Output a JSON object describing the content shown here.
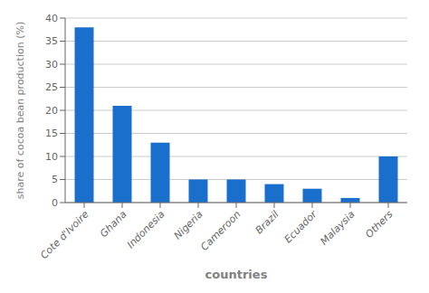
{
  "chart_data": {
    "type": "bar",
    "categories": [
      "Cote d'Ivoire",
      "Ghana",
      "Indonesia",
      "Nigeria",
      "Cameroon",
      "Brazil",
      "Ecuador",
      "Malaysia",
      "Others"
    ],
    "values": [
      38,
      21,
      13,
      5,
      5,
      4,
      3,
      1,
      10
    ],
    "color": "#1a6fcc",
    "xlabel": "countries",
    "ylabel": "share of cocoa bean production (%)",
    "ylim": [
      0,
      40
    ],
    "yticks": [
      0,
      5,
      10,
      15,
      20,
      25,
      30,
      35,
      40
    ],
    "grid": true
  }
}
